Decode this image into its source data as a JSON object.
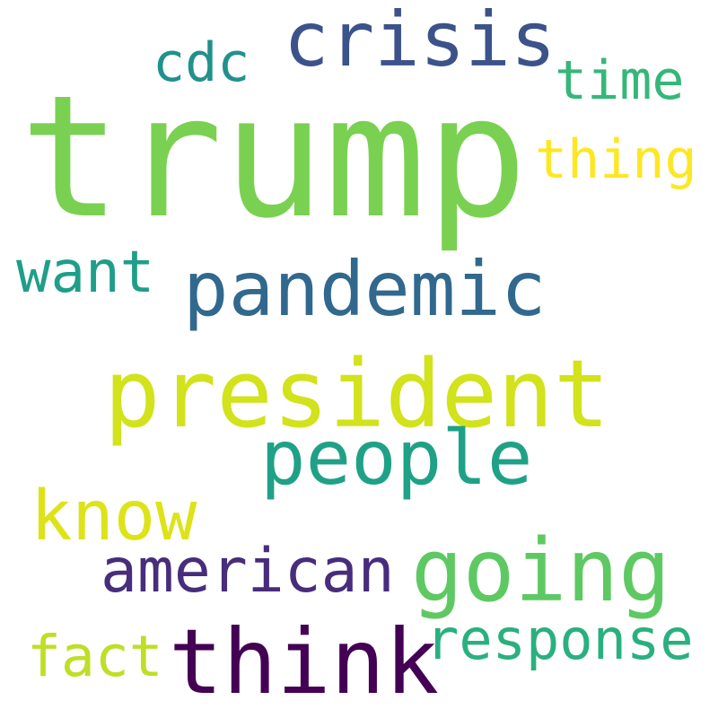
{
  "words": [
    {
      "text": "trump",
      "color": "#7ad151"
    },
    {
      "text": "crisis",
      "color": "#3b528b"
    },
    {
      "text": "cdc",
      "color": "#21918c"
    },
    {
      "text": "time",
      "color": "#35b779"
    },
    {
      "text": "thing",
      "color": "#fde725"
    },
    {
      "text": "pandemic",
      "color": "#31688e"
    },
    {
      "text": "want",
      "color": "#1f9e89"
    },
    {
      "text": "president",
      "color": "#d2e21b"
    },
    {
      "text": "people",
      "color": "#1fa187"
    },
    {
      "text": "know",
      "color": "#dde318"
    },
    {
      "text": "going",
      "color": "#5ec962"
    },
    {
      "text": "american",
      "color": "#472d7b"
    },
    {
      "text": "response",
      "color": "#2ab07f"
    },
    {
      "text": "think",
      "color": "#440154"
    },
    {
      "text": "fact",
      "color": "#bddf26"
    }
  ]
}
